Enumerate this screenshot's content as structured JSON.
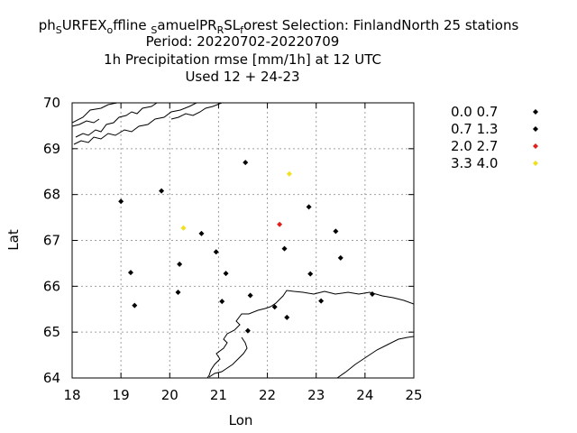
{
  "title": {
    "line1": {
      "p1": "ph",
      "p2": "S",
      "p3": "URFEX",
      "p4": "o",
      "p5": "ffline ",
      "p6": "S",
      "p7": "amuelPR",
      "p8": "R",
      "p9": "SL",
      "p10": "f",
      "p11": "orest   Selection: FinlandNorth      25 stations"
    },
    "line2": "Period: 20220702-20220709",
    "line3": "1h Precipitation rmse [mm/1h] at  12 UTC",
    "line4": "Used  12 + 24-23"
  },
  "legend": [
    {
      "label": "0.0 0.7",
      "color": "#000000"
    },
    {
      "label": "0.7 1.3",
      "color": "#000000"
    },
    {
      "label": "2.0 2.7",
      "color": "#e0201b"
    },
    {
      "label": "3.3 4.0",
      "color": "#f0e020"
    }
  ],
  "chart_data": {
    "type": "scatter",
    "xlabel": "Lon",
    "ylabel": "Lat",
    "xlim": [
      18,
      25
    ],
    "ylim": [
      64,
      70
    ],
    "xticks": [
      "18",
      "19",
      "20",
      "21",
      "22",
      "23",
      "24",
      "25"
    ],
    "yticks": [
      "64",
      "65",
      "66",
      "67",
      "68",
      "69",
      "70"
    ],
    "grid": true,
    "legend_position": "right",
    "points": [
      {
        "lon": 19.0,
        "lat": 67.85,
        "color": "#000000"
      },
      {
        "lon": 19.83,
        "lat": 68.08,
        "color": "#000000"
      },
      {
        "lon": 19.2,
        "lat": 66.3,
        "color": "#000000"
      },
      {
        "lon": 19.28,
        "lat": 65.58,
        "color": "#000000"
      },
      {
        "lon": 20.28,
        "lat": 67.27,
        "color": "#f0e020"
      },
      {
        "lon": 20.65,
        "lat": 67.15,
        "color": "#000000"
      },
      {
        "lon": 20.2,
        "lat": 66.48,
        "color": "#000000"
      },
      {
        "lon": 20.17,
        "lat": 65.87,
        "color": "#000000"
      },
      {
        "lon": 20.95,
        "lat": 66.75,
        "color": "#000000"
      },
      {
        "lon": 21.15,
        "lat": 66.28,
        "color": "#000000"
      },
      {
        "lon": 21.07,
        "lat": 65.67,
        "color": "#000000"
      },
      {
        "lon": 21.55,
        "lat": 68.7,
        "color": "#000000"
      },
      {
        "lon": 21.65,
        "lat": 65.8,
        "color": "#000000"
      },
      {
        "lon": 21.6,
        "lat": 65.03,
        "color": "#000000"
      },
      {
        "lon": 22.45,
        "lat": 68.45,
        "color": "#f0e020"
      },
      {
        "lon": 22.25,
        "lat": 67.35,
        "color": "#e0201b"
      },
      {
        "lon": 22.35,
        "lat": 66.82,
        "color": "#000000"
      },
      {
        "lon": 22.85,
        "lat": 67.73,
        "color": "#000000"
      },
      {
        "lon": 22.88,
        "lat": 66.27,
        "color": "#000000"
      },
      {
        "lon": 22.15,
        "lat": 65.55,
        "color": "#000000"
      },
      {
        "lon": 22.4,
        "lat": 65.32,
        "color": "#000000"
      },
      {
        "lon": 23.1,
        "lat": 65.68,
        "color": "#000000"
      },
      {
        "lon": 23.4,
        "lat": 67.2,
        "color": "#000000"
      },
      {
        "lon": 23.5,
        "lat": 66.62,
        "color": "#000000"
      },
      {
        "lon": 24.15,
        "lat": 65.83,
        "color": "#000000"
      }
    ]
  }
}
